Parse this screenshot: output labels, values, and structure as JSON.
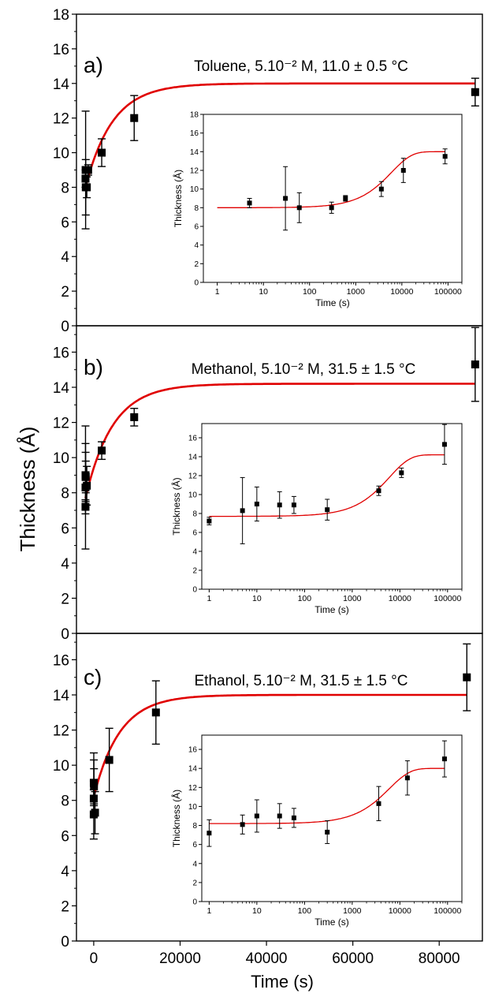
{
  "figure": {
    "ylabel": "Thickness (Å)",
    "xlabel": "Time (s)",
    "colors": {
      "fit": "#e00000",
      "points": "#000000",
      "axes": "#000000"
    }
  },
  "chart_data": [
    {
      "type": "scatter",
      "panel_label": "a)",
      "title": "Toluene, 5.10⁻² M, 11.0 ± 0.5 °C",
      "xlabel": "",
      "ylabel": "",
      "xlim": [
        -2000,
        88000
      ],
      "ylim": [
        0,
        18
      ],
      "xticks": [],
      "yticks": [
        0,
        2,
        4,
        6,
        8,
        10,
        12,
        14,
        16,
        18
      ],
      "series": [
        {
          "points": [
            {
              "x": 5,
              "y": 8.5,
              "err": 0.5
            },
            {
              "x": 30,
              "y": 9.0,
              "err": 3.4
            },
            {
              "x": 60,
              "y": 8.0,
              "err": 1.6
            },
            {
              "x": 300,
              "y": 8.0,
              "err": 0.6
            },
            {
              "x": 600,
              "y": 9.0,
              "err": 0.3
            },
            {
              "x": 3600,
              "y": 10.0,
              "err": 0.8
            },
            {
              "x": 10800,
              "y": 12.0,
              "err": 1.3
            },
            {
              "x": 86400,
              "y": 13.5,
              "err": 0.8
            }
          ]
        }
      ],
      "fit": {
        "y0": 8.0,
        "plateau": 14.0,
        "tau": 6000
      },
      "inset": {
        "xlabel": "Time (s)",
        "ylabel": "Thickness (Å)",
        "xscale": "log",
        "xlim": [
          0.5,
          200000
        ],
        "ylim": [
          0,
          18
        ],
        "xticks": [
          "1",
          "10",
          "100",
          "1000",
          "10000",
          "100000"
        ],
        "yticks": [
          0,
          2,
          4,
          6,
          8,
          10,
          12,
          14,
          16,
          18
        ]
      }
    },
    {
      "type": "scatter",
      "panel_label": "b)",
      "title": "Methanol, 5.10⁻² M, 31.5 ± 1.5 °C",
      "xlabel": "",
      "ylabel": "",
      "xlim": [
        -2000,
        88000
      ],
      "ylim": [
        0,
        17.5
      ],
      "xticks": [],
      "yticks": [
        0,
        2,
        4,
        6,
        8,
        10,
        12,
        14,
        16
      ],
      "series": [
        {
          "points": [
            {
              "x": 1,
              "y": 7.2,
              "err": 0.4
            },
            {
              "x": 5,
              "y": 8.3,
              "err": 3.5
            },
            {
              "x": 10,
              "y": 9.0,
              "err": 1.8
            },
            {
              "x": 30,
              "y": 8.9,
              "err": 1.4
            },
            {
              "x": 60,
              "y": 8.9,
              "err": 0.9
            },
            {
              "x": 300,
              "y": 8.4,
              "err": 1.1
            },
            {
              "x": 3600,
              "y": 10.4,
              "err": 0.5
            },
            {
              "x": 10800,
              "y": 12.3,
              "err": 0.5
            },
            {
              "x": 86400,
              "y": 15.3,
              "err": 2.1
            }
          ]
        }
      ],
      "fit": {
        "y0": 7.7,
        "plateau": 14.2,
        "tau": 6000
      },
      "inset": {
        "xlabel": "Time (s)",
        "ylabel": "Thickness (Å)",
        "xscale": "log",
        "xlim": [
          0.7,
          200000
        ],
        "ylim": [
          0,
          17.5
        ],
        "xticks": [
          "1",
          "10",
          "100",
          "1000",
          "10000",
          "100000"
        ],
        "yticks": [
          0,
          2,
          4,
          6,
          8,
          10,
          12,
          14,
          16
        ]
      }
    },
    {
      "type": "scatter",
      "panel_label": "c)",
      "title": "Ethanol, 5.10⁻² M, 31.5 ± 1.5 °C",
      "xlabel": "Time (s)",
      "ylabel": "",
      "xlim": [
        -4000,
        90000
      ],
      "ylim": [
        0,
        17.5
      ],
      "xticks": [
        0,
        20000,
        40000,
        60000,
        80000
      ],
      "yticks": [
        0,
        2,
        4,
        6,
        8,
        10,
        12,
        14,
        16
      ],
      "series": [
        {
          "points": [
            {
              "x": 1,
              "y": 7.2,
              "err": 1.4
            },
            {
              "x": 5,
              "y": 8.1,
              "err": 1.0
            },
            {
              "x": 10,
              "y": 9.0,
              "err": 1.7
            },
            {
              "x": 30,
              "y": 9.0,
              "err": 1.3
            },
            {
              "x": 60,
              "y": 8.8,
              "err": 1.0
            },
            {
              "x": 300,
              "y": 7.3,
              "err": 1.2
            },
            {
              "x": 3600,
              "y": 10.3,
              "err": 1.8
            },
            {
              "x": 14400,
              "y": 13.0,
              "err": 1.8
            },
            {
              "x": 86400,
              "y": 15.0,
              "err": 1.9
            }
          ]
        }
      ],
      "fit": {
        "y0": 8.2,
        "plateau": 14.0,
        "tau": 6000
      },
      "inset": {
        "xlabel": "Time (s)",
        "ylabel": "Thickness (Å)",
        "xscale": "log",
        "xlim": [
          0.7,
          200000
        ],
        "ylim": [
          0,
          17.5
        ],
        "xticks": [
          "1",
          "10",
          "100",
          "1000",
          "10000",
          "100000"
        ],
        "yticks": [
          0,
          2,
          4,
          6,
          8,
          10,
          12,
          14,
          16
        ]
      }
    }
  ]
}
